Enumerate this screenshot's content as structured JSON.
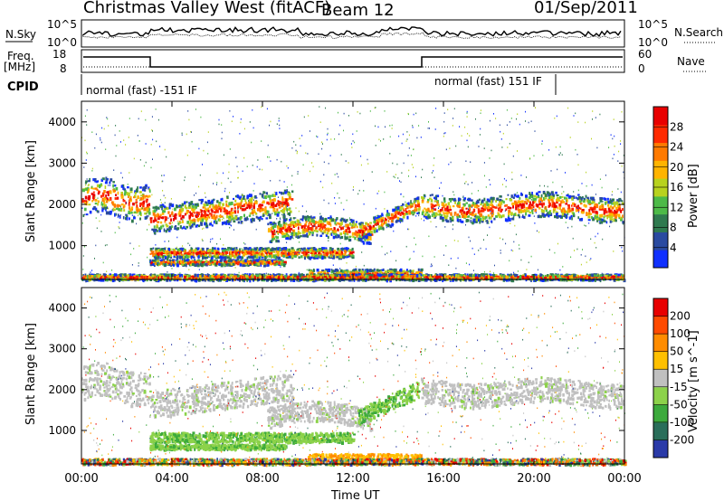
{
  "header": {
    "station": "Christmas Valley West (fitACF)",
    "beam": "Beam 12",
    "date": "01/Sep/2011"
  },
  "panels": {
    "nsky": {
      "label": "N.Sky",
      "tick_top": "10^5",
      "tick_bottom": "10^0",
      "right_label": "N.Search",
      "right_tick_top": "10^5",
      "right_tick_bottom": "10^0"
    },
    "freq": {
      "label_line1": "Freq.",
      "label_line2": "[MHz]",
      "tick_top": "18",
      "tick_bottom": "8",
      "right_label": "Nave",
      "right_tick_top": "60",
      "right_tick_bottom": "0"
    },
    "cpid": {
      "label": "CPID",
      "segments": [
        "normal (fast) -151 IF",
        "normal (fast) 151 IF"
      ]
    }
  },
  "chart_data": [
    {
      "type": "heatmap",
      "name": "power",
      "ylabel": "Slant Range [km]",
      "yticks": [
        "1000",
        "2000",
        "3000",
        "4000"
      ],
      "ylim": [
        180,
        4500
      ],
      "colorbar": {
        "label": "Power [dB]",
        "ticks": [
          "4",
          "8",
          "12",
          "16",
          "20",
          "24",
          "28"
        ],
        "colors": [
          "#1030ff",
          "#2a4aa0",
          "#2f7a4f",
          "#4dba48",
          "#b8d21e",
          "#ffb400",
          "#ff7a00",
          "#ff2a00",
          "#e80000"
        ]
      }
    },
    {
      "type": "heatmap",
      "name": "velocity",
      "ylabel": "Slant Range [km]",
      "yticks": [
        "1000",
        "2000",
        "3000",
        "4000"
      ],
      "ylim": [
        180,
        4500
      ],
      "xlabel": "Time UT",
      "xticks": [
        "00:00",
        "04:00",
        "08:00",
        "12:00",
        "16:00",
        "20:00",
        "00:00"
      ],
      "colorbar": {
        "label": "Velocity [m s^-1]",
        "ticks": [
          "200",
          "100",
          "50",
          "15",
          "-15",
          "-50",
          "-100",
          "-200"
        ],
        "colors": [
          "#2a3aa8",
          "#2a6e5a",
          "#3caa3c",
          "#8cd24a",
          "#c0c0c0",
          "#ffc000",
          "#ff8c00",
          "#ff4a00",
          "#e80000"
        ]
      }
    }
  ]
}
